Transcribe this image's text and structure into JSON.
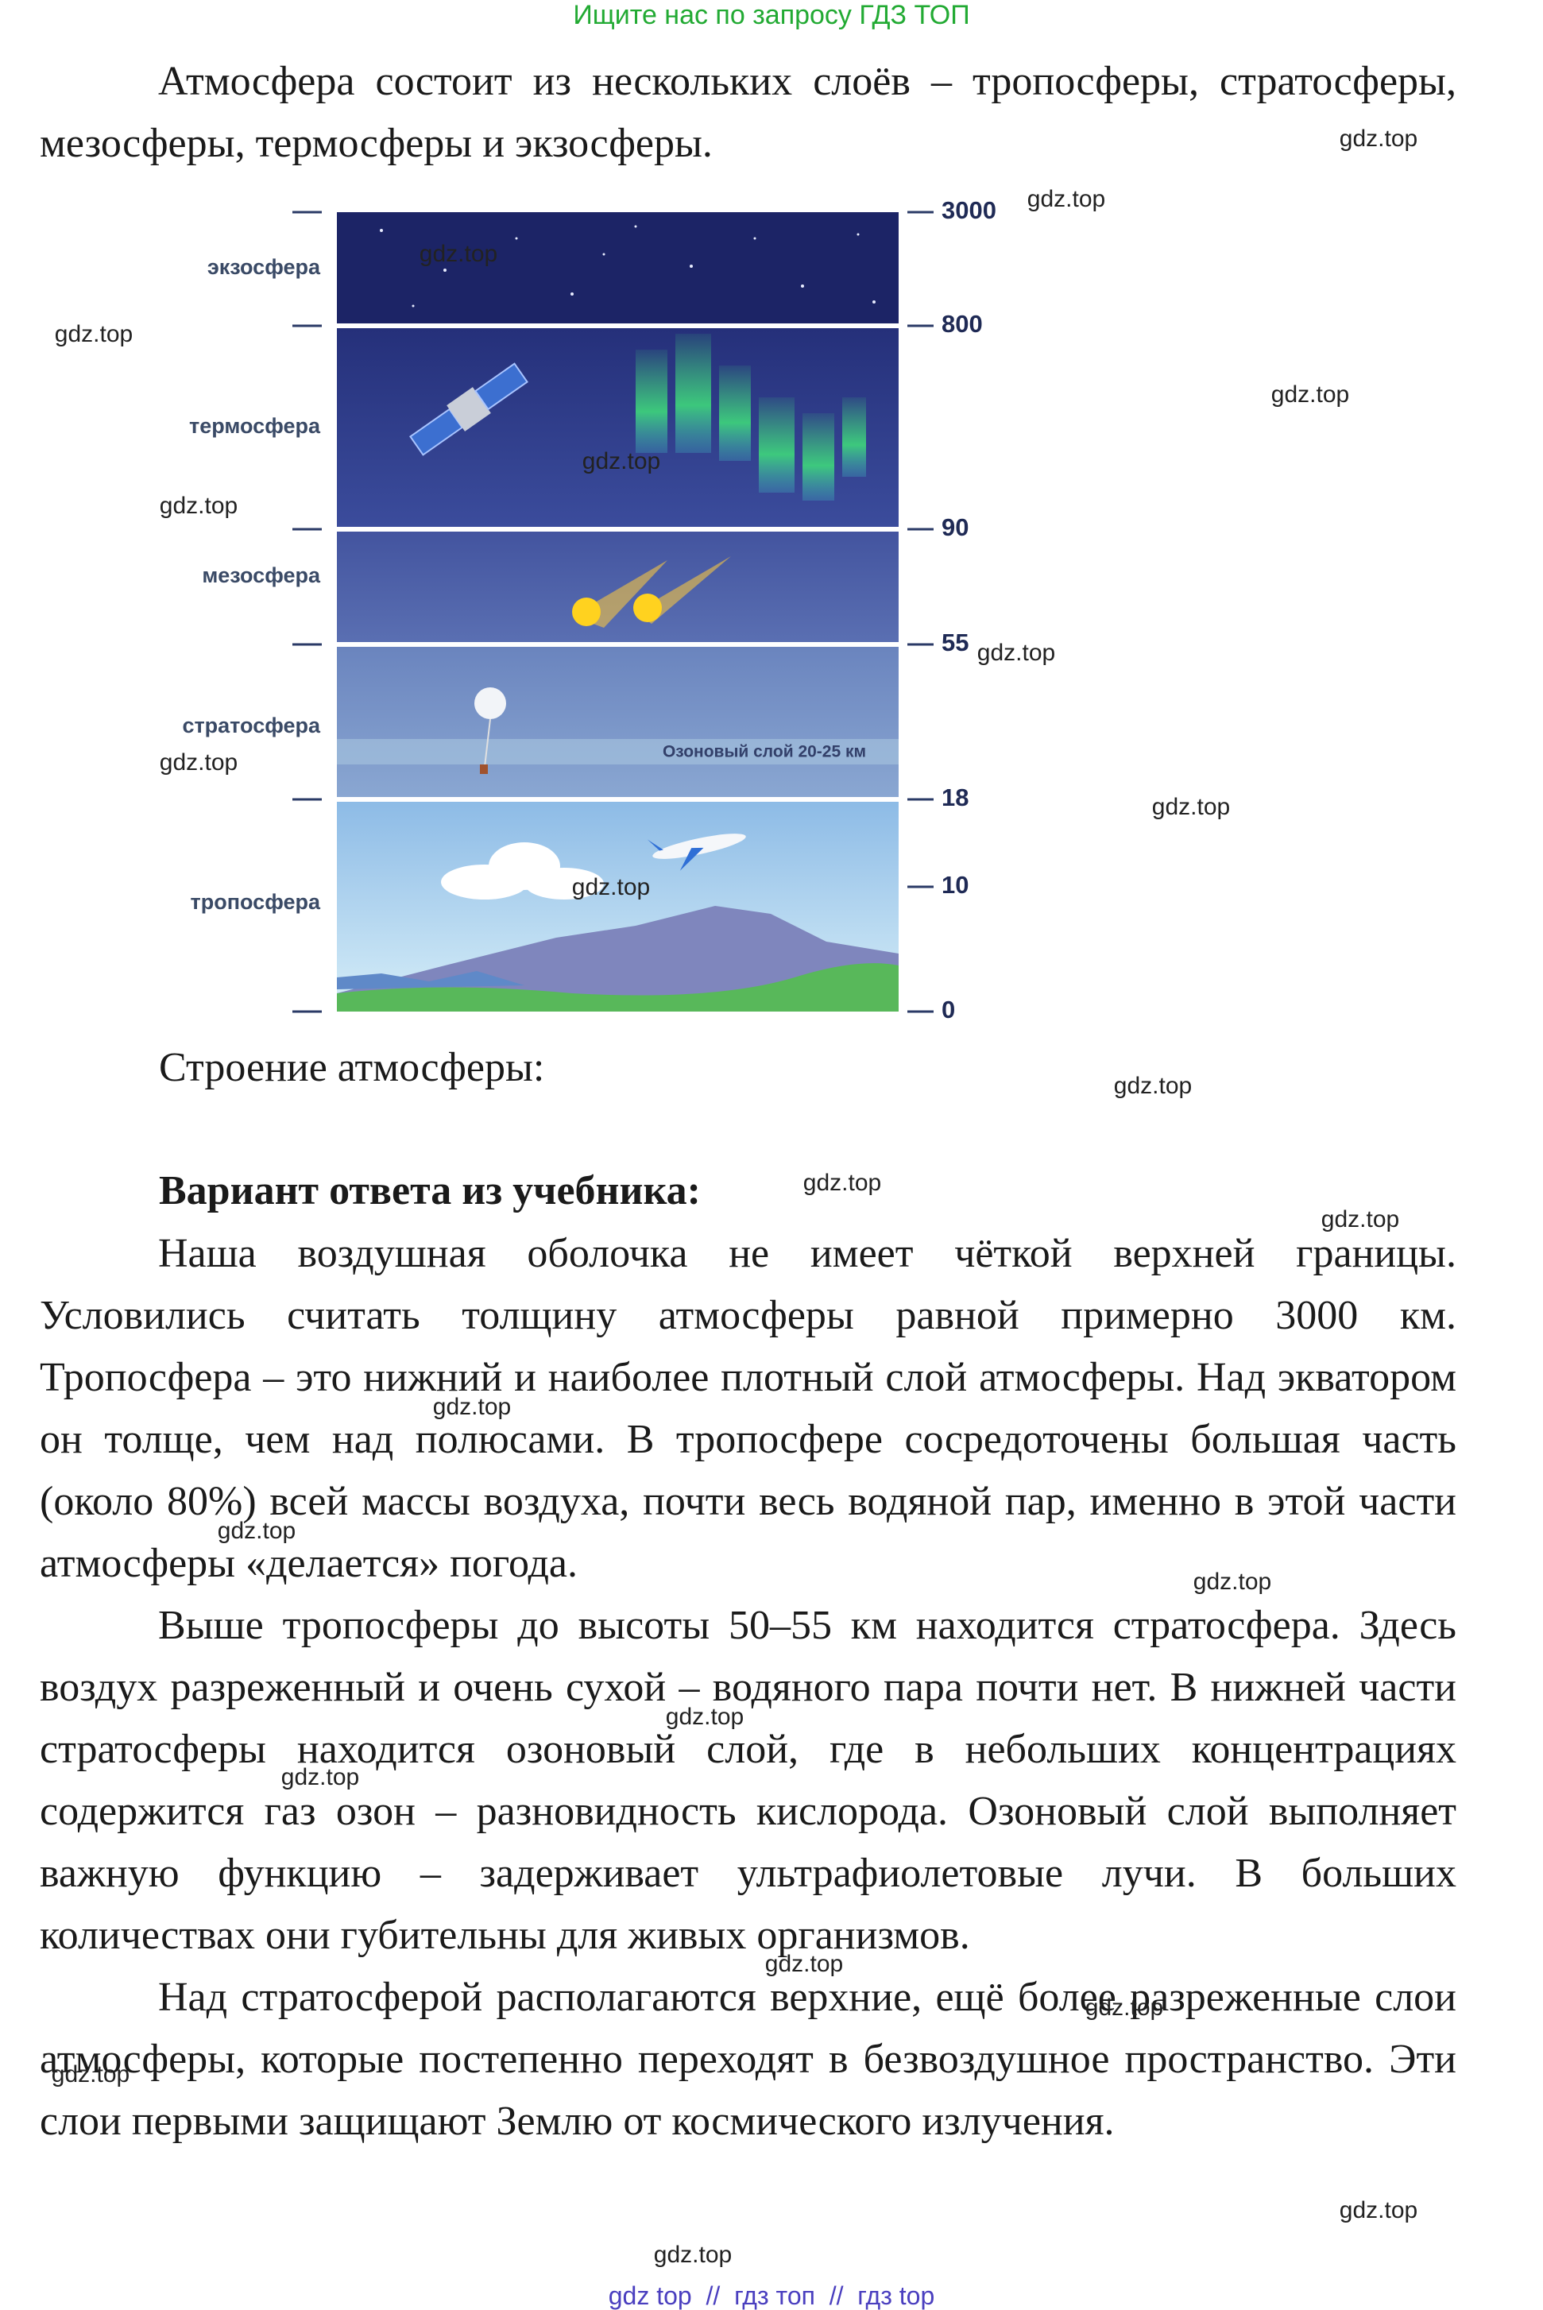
{
  "header": {
    "notice": "Ищите нас по запросу ГДЗ ТОП"
  },
  "intro": "Атмосфера состоит из нескольких слоёв – тропосферы, стратосферы, мезосферы, термосферы и экзосферы.",
  "diagram": {
    "layers": [
      "экзосфера",
      "термосфера",
      "мезосфера",
      "стратосфера",
      "тропосфера"
    ],
    "altitudes": [
      "3000",
      "800",
      "90",
      "55",
      "18",
      "10",
      "0"
    ],
    "ozone_label": "Озоновый слой 20-25 км"
  },
  "caption": "Строение атмосферы:",
  "answer": {
    "heading": "Вариант ответа из учебника:",
    "paragraphs": [
      "Наша воздушная оболочка не имеет чёткой верхней границы. Условились считать толщину атмосферы равной примерно 3000 км. Тропосфера – это нижний и наиболее плотный слой атмосферы. Над экватором он толще, чем над полюсами. В тропосфере сосредоточены большая часть (около 80%) всей массы воздуха, почти весь водяной пар, именно в этой части атмосферы «делается» погода.",
      "Выше тропосферы до высоты 50–55 км находится стратосфера. Здесь воздух разреженный и очень сухой – водяного пара почти нет. В нижней части стратосферы находится озоновый слой, где в небольших концентрациях содержится газ озон – разновидность кислорода. Озоновый слой выполняет важную функцию – задерживает ультрафиолетовые лучи. В больших количествах они губительны для живых организмов.",
      "Над стратосферой располагаются верхние, ещё более разреженные слои атмосферы, которые постепенно переходят в безвоздушное пространство. Эти слои первыми защищают Землю от космического излучения."
    ]
  },
  "watermarks": [
    "gdz.top",
    "gdz.top",
    "gdz.top",
    "gdz.top",
    "gdz.top",
    "gdz.top",
    "gdz.top",
    "gdz.top",
    "gdz.top",
    "gdz.top",
    "gdz.top",
    "gdz.top",
    "gdz.top",
    "gdz.top",
    "gdz.top",
    "gdz.top",
    "gdz.top",
    "gdz.top",
    "gdz.top",
    "gdz.top",
    "gdz.top",
    "gdz.top",
    "gdz.top",
    "gdz.top"
  ],
  "footer": "gdz top  //  гдз топ  //  гдз top"
}
